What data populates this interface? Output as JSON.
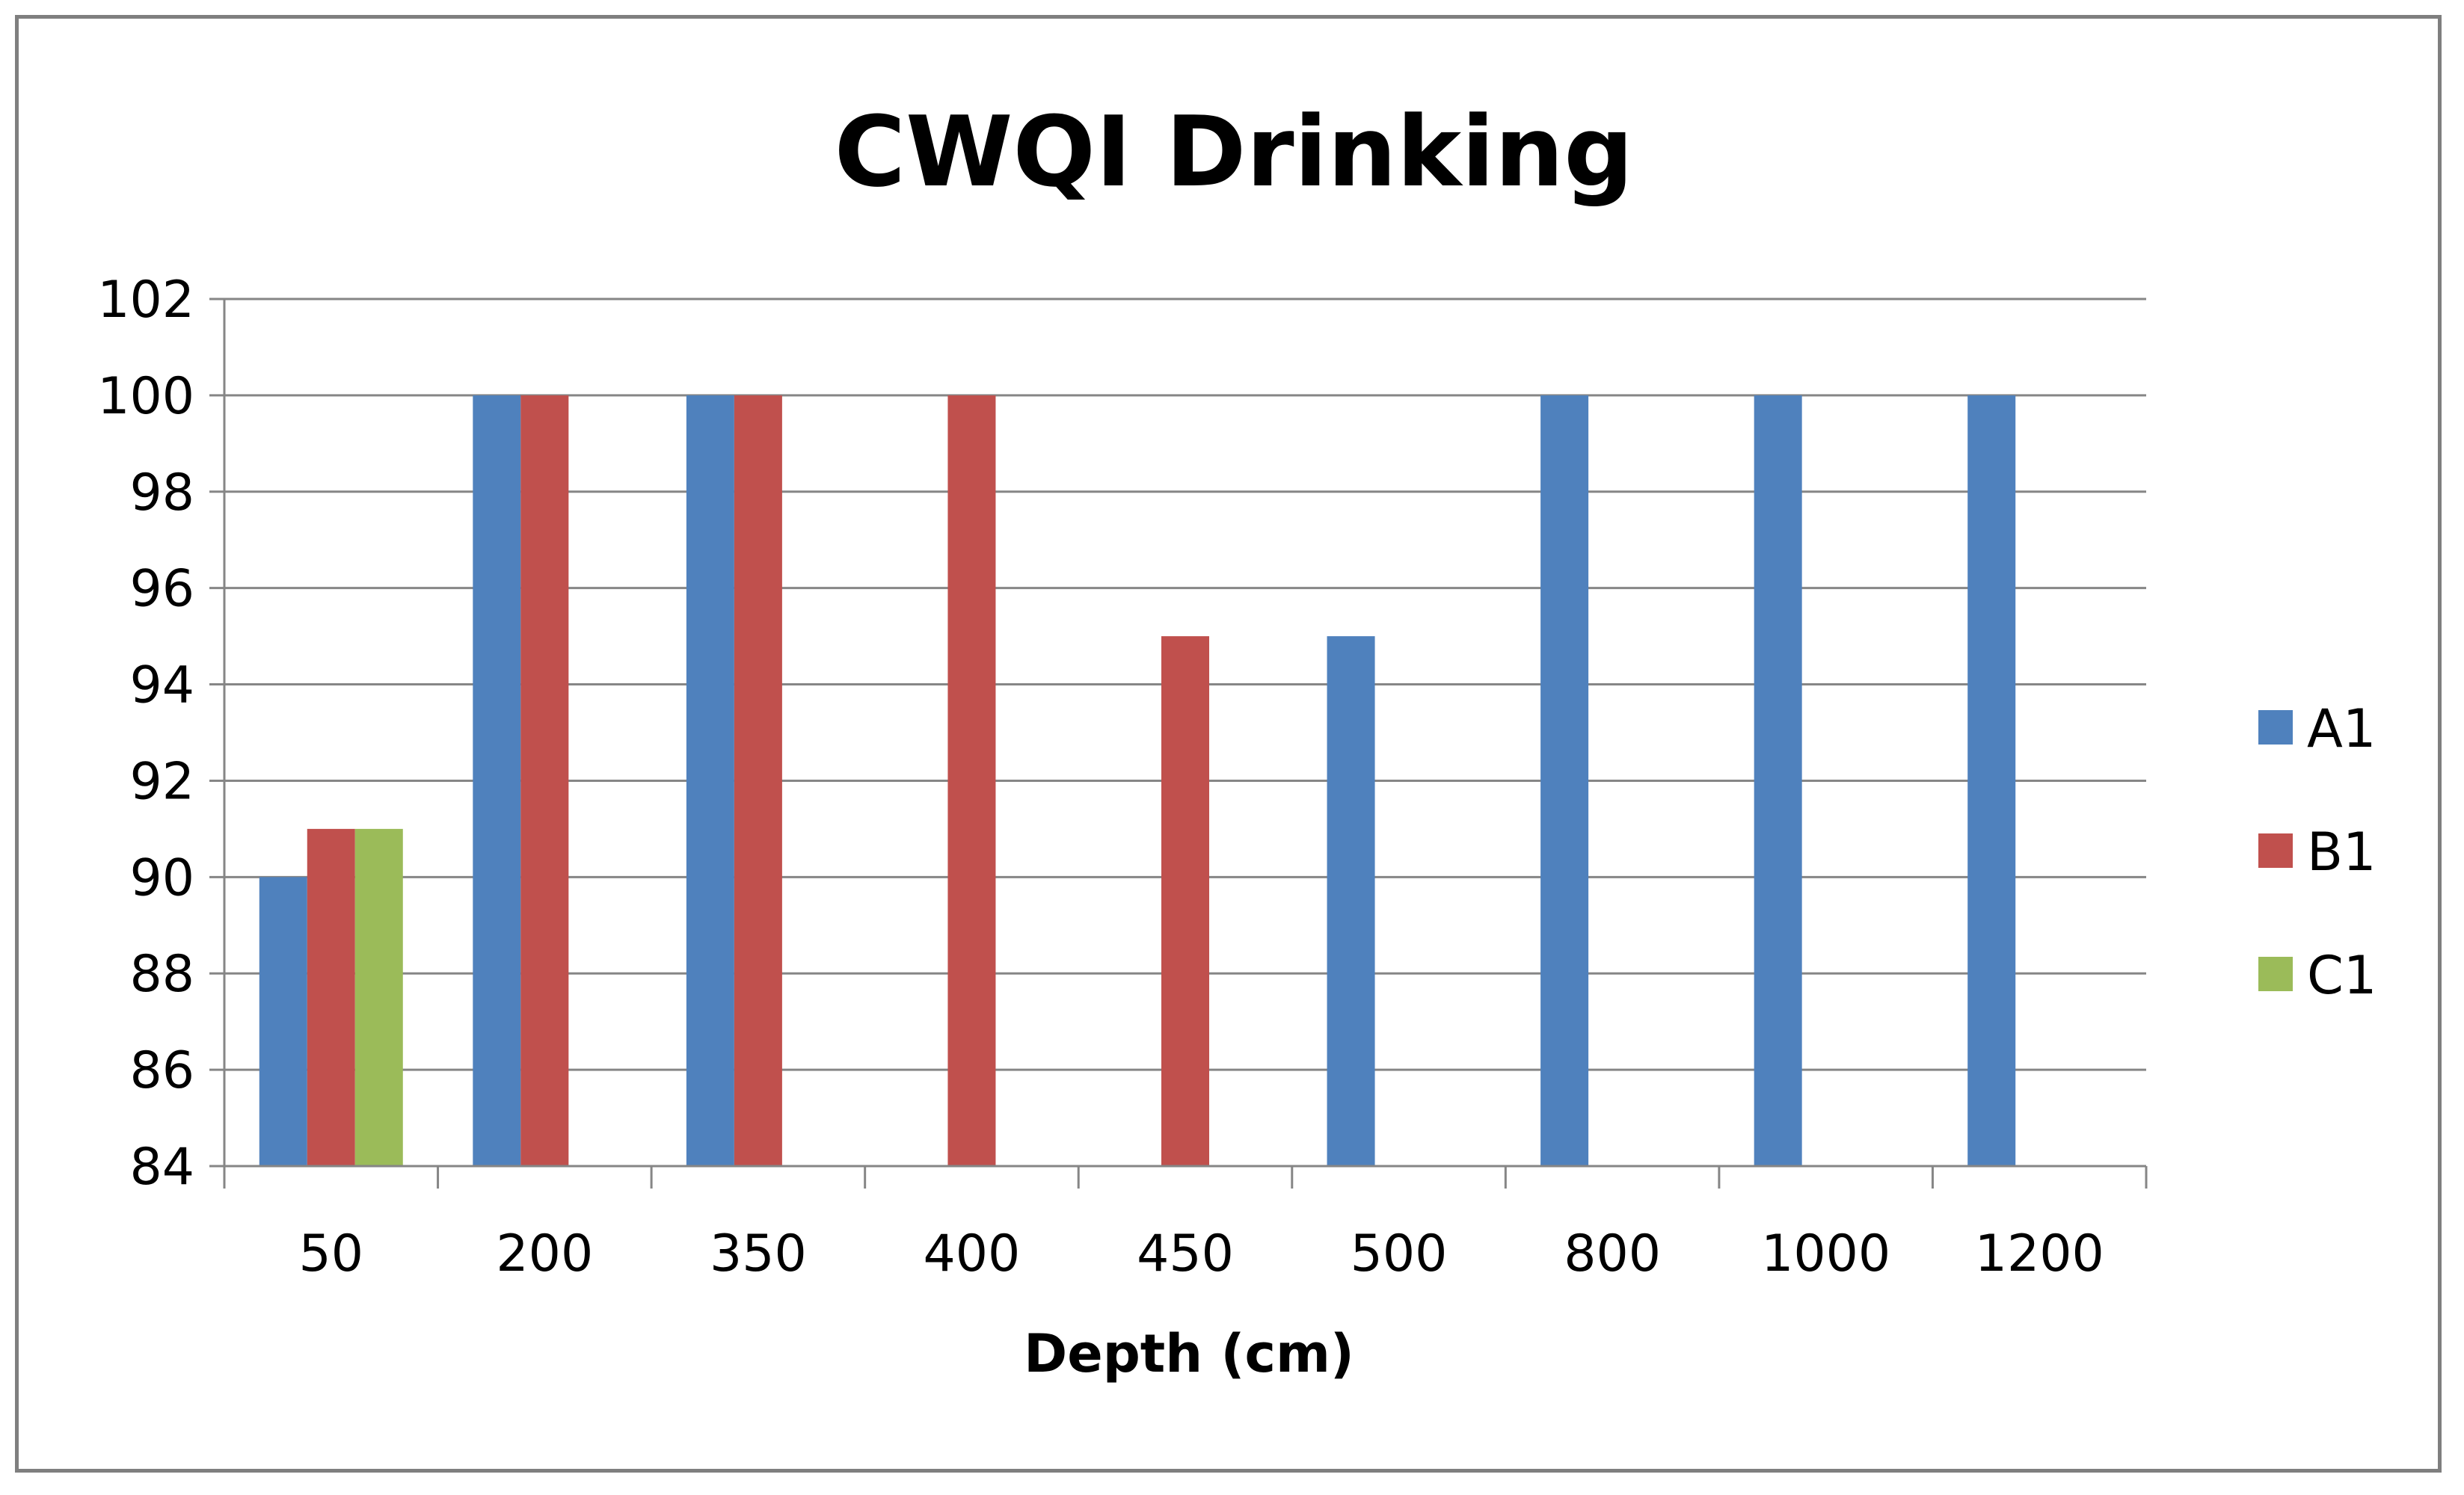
{
  "chart_data": {
    "type": "bar",
    "title": "CWQI Drinking",
    "xlabel": "Depth (cm)",
    "ylabel": "",
    "categories": [
      "50",
      "200",
      "350",
      "400",
      "450",
      "500",
      "800",
      "1000",
      "1200"
    ],
    "series": [
      {
        "name": "A1",
        "color": "#4f81bd",
        "values": [
          90,
          100,
          100,
          null,
          null,
          95,
          100,
          100,
          100
        ]
      },
      {
        "name": "B1",
        "color": "#c0504d",
        "values": [
          91,
          100,
          100,
          100,
          95,
          null,
          null,
          null,
          null
        ]
      },
      {
        "name": "C1",
        "color": "#9bbb59",
        "values": [
          91,
          null,
          null,
          null,
          null,
          null,
          null,
          null,
          null
        ]
      }
    ],
    "ylim": [
      84,
      102
    ],
    "yticks": [
      84,
      86,
      88,
      90,
      92,
      94,
      96,
      98,
      100,
      102
    ],
    "grid": true,
    "legend_position": "right"
  }
}
